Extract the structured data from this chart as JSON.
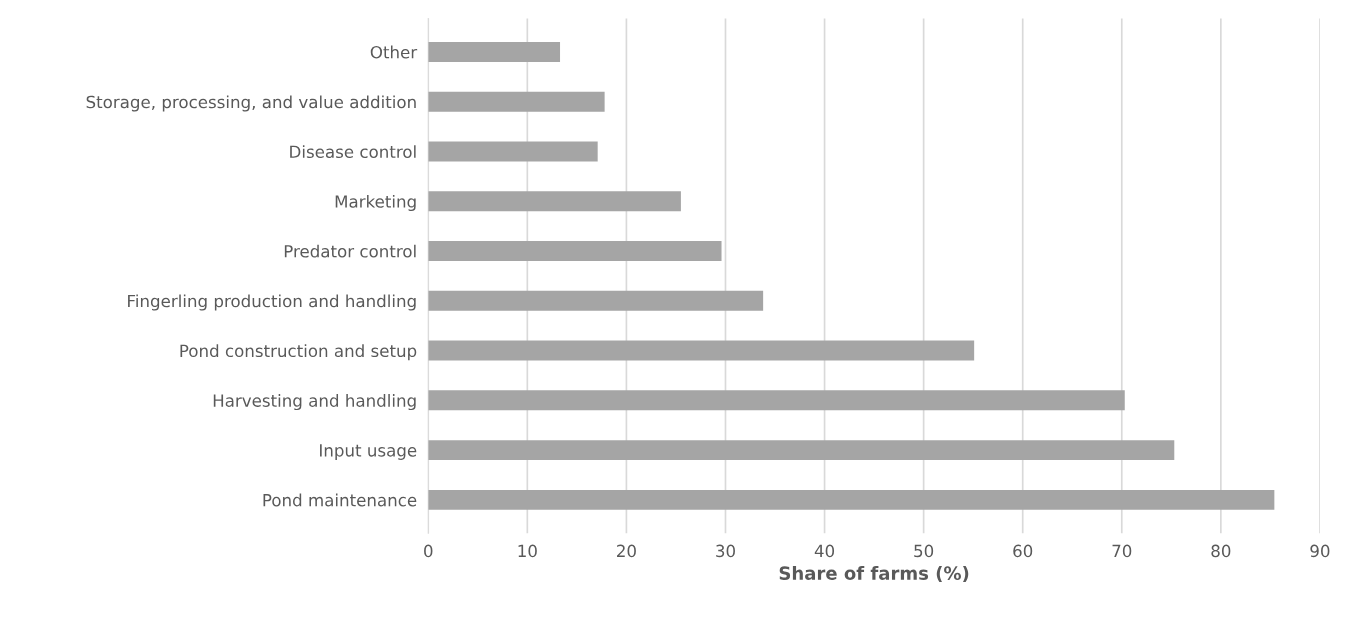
{
  "chart_data": {
    "type": "bar",
    "orientation": "horizontal",
    "xlabel": "Share of farms (%)",
    "categories": [
      "Other",
      "Storage, processing, and value addition",
      "Disease control",
      "Marketing",
      "Predator control",
      "Fingerling production and handling",
      "Pond construction and setup",
      "Harvesting and handling",
      "Input usage",
      "Pond maintenance"
    ],
    "values": [
      13.3,
      17.8,
      17.1,
      25.5,
      29.6,
      33.8,
      55.1,
      70.3,
      75.3,
      85.4
    ],
    "color": "#a5a5a5",
    "xlim": [
      0,
      90
    ],
    "xticks": [
      0,
      10,
      20,
      30,
      40,
      50,
      60,
      70,
      80,
      90
    ],
    "grid": "x",
    "legend": false
  }
}
